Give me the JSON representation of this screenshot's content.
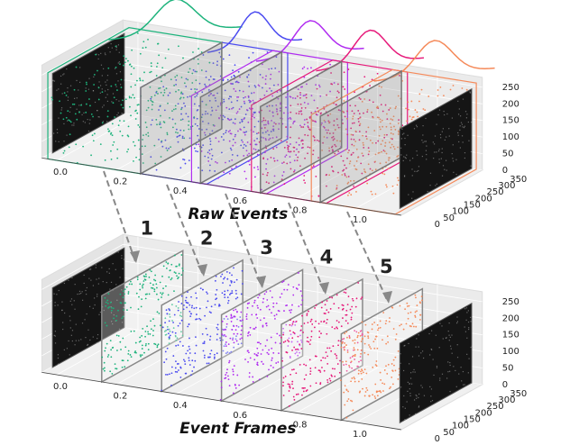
{
  "panels": [
    {
      "title": "Raw Events",
      "x_ticks": [
        "0.0",
        "0.2",
        "0.4",
        "0.6",
        "0.8",
        "1.0"
      ],
      "z_ticks": [
        "0",
        "50",
        "100",
        "150",
        "200",
        "250"
      ],
      "y_ticks": [
        "0",
        "50",
        "100",
        "150",
        "200",
        "250",
        "300",
        "350"
      ]
    },
    {
      "title": "Event Frames",
      "x_ticks": [
        "0.0",
        "0.2",
        "0.4",
        "0.6",
        "0.8",
        "1.0"
      ],
      "z_ticks": [
        "0",
        "50",
        "100",
        "150",
        "200",
        "250"
      ],
      "y_ticks": [
        "0",
        "50",
        "100",
        "150",
        "200",
        "250",
        "300",
        "350"
      ],
      "frame_labels": [
        "1",
        "2",
        "3",
        "4",
        "5"
      ]
    }
  ]
}
